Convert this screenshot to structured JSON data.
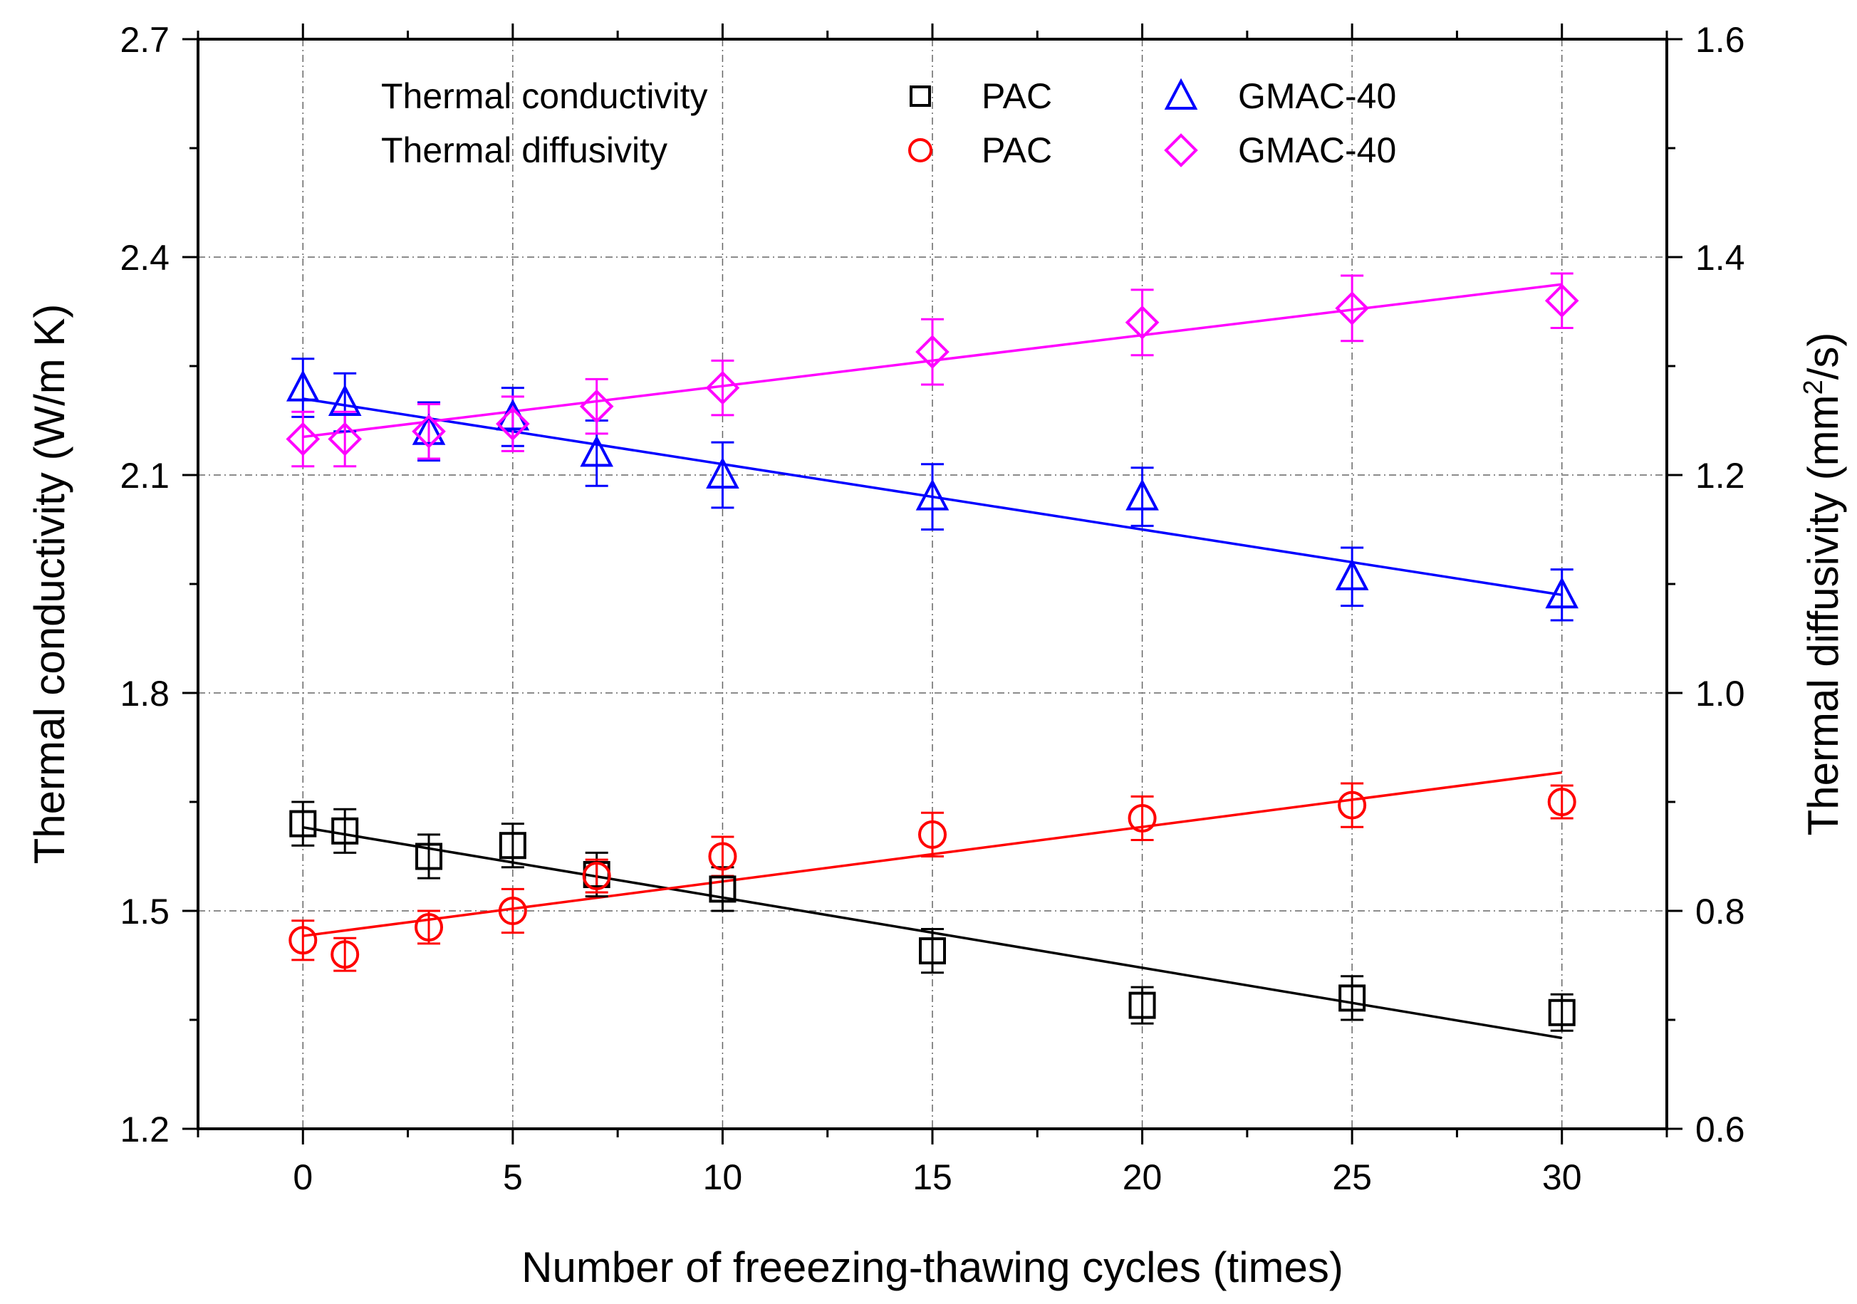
{
  "chart_data": {
    "type": "scatter",
    "xlabel": "Number of freeezing-thawing cycles (times)",
    "ylabel_left": "Thermal conductivity (W/m K)",
    "ylabel_right_prefix": "Thermal diffusivity (mm",
    "ylabel_right_sup": "2",
    "ylabel_right_suffix": "/s)",
    "xlim": [
      -2.5,
      32.5
    ],
    "ylim_left": [
      1.2,
      2.7
    ],
    "ylim_right": [
      0.6,
      1.6
    ],
    "xticks": [
      0,
      5,
      10,
      15,
      20,
      25,
      30
    ],
    "xtick_labels": [
      "0",
      "5",
      "10",
      "15",
      "20",
      "25",
      "30"
    ],
    "yticks_left": [
      1.2,
      1.5,
      1.8,
      2.1,
      2.4,
      2.7
    ],
    "ytick_labels_left": [
      "1.2",
      "1.5",
      "1.8",
      "2.1",
      "2.4",
      "2.7"
    ],
    "yticks_right": [
      0.6,
      0.8,
      1.0,
      1.2,
      1.4,
      1.6
    ],
    "ytick_labels_right": [
      "0.6",
      "0.8",
      "1.0",
      "1.2",
      "1.4",
      "1.6"
    ],
    "grid": true,
    "legend": {
      "placement": "top",
      "row_labels": [
        "Thermal conductivity",
        "Thermal diffusivity"
      ],
      "entries": [
        {
          "label": "PAC",
          "row": 0,
          "col": 0,
          "series_index": 0
        },
        {
          "label": "GMAC-40",
          "row": 0,
          "col": 1,
          "series_index": 1
        },
        {
          "label": "PAC",
          "row": 1,
          "col": 0,
          "series_index": 2
        },
        {
          "label": "GMAC-40",
          "row": 1,
          "col": 1,
          "series_index": 3
        }
      ]
    },
    "series": [
      {
        "name": "PAC (Thermal conductivity)",
        "axis": "left",
        "marker": "square",
        "color": "#000000",
        "x": [
          0,
          1,
          3,
          5,
          7,
          10,
          15,
          20,
          25,
          30
        ],
        "y": [
          1.62,
          1.61,
          1.575,
          1.59,
          1.55,
          1.53,
          1.445,
          1.37,
          1.38,
          1.36
        ],
        "err": [
          0.03,
          0.03,
          0.03,
          0.03,
          0.03,
          0.03,
          0.03,
          0.025,
          0.03,
          0.025
        ],
        "fit": {
          "x": [
            0,
            30
          ],
          "y": [
            1.615,
            1.325
          ]
        }
      },
      {
        "name": "GMAC-40 (Thermal conductivity)",
        "axis": "left",
        "marker": "triangle",
        "color": "#0000ff",
        "x": [
          0,
          1,
          3,
          5,
          7,
          10,
          15,
          20,
          25,
          30
        ],
        "y": [
          2.22,
          2.2,
          2.16,
          2.18,
          2.13,
          2.1,
          2.07,
          2.07,
          1.96,
          1.935
        ],
        "err": [
          0.04,
          0.04,
          0.04,
          0.04,
          0.045,
          0.045,
          0.045,
          0.04,
          0.04,
          0.035
        ],
        "fit": {
          "x": [
            0,
            30
          ],
          "y": [
            2.205,
            1.935
          ]
        }
      },
      {
        "name": "PAC (Thermal diffusivity)",
        "axis": "right",
        "marker": "circle",
        "color": "#ff0000",
        "x": [
          0,
          1,
          3,
          5,
          7,
          10,
          15,
          20,
          25,
          30
        ],
        "y": [
          0.773,
          0.76,
          0.785,
          0.8,
          0.832,
          0.85,
          0.87,
          0.885,
          0.897,
          0.9
        ],
        "err": [
          0.018,
          0.015,
          0.015,
          0.02,
          0.015,
          0.018,
          0.02,
          0.02,
          0.02,
          0.015
        ],
        "fit": {
          "x": [
            0,
            30
          ],
          "y": [
            0.777,
            0.927
          ]
        }
      },
      {
        "name": "GMAC-40 (Thermal diffusivity)",
        "axis": "right",
        "marker": "diamond",
        "color": "#ff00ff",
        "x": [
          0,
          1,
          3,
          5,
          7,
          10,
          15,
          20,
          25,
          30
        ],
        "y": [
          1.233,
          1.233,
          1.24,
          1.247,
          1.263,
          1.28,
          1.313,
          1.34,
          1.353,
          1.36
        ],
        "err": [
          0.025,
          0.025,
          0.025,
          0.025,
          0.025,
          0.025,
          0.03,
          0.03,
          0.03,
          0.025
        ],
        "fit": {
          "x": [
            0,
            30
          ],
          "y": [
            1.235,
            1.375
          ]
        }
      }
    ]
  }
}
